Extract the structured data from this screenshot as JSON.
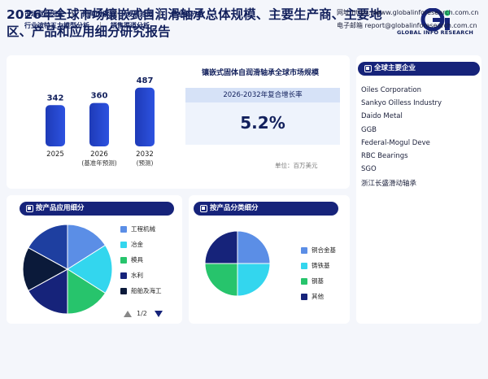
{
  "header": {
    "title": "2026年全球市场镶嵌式自润滑轴承总体规模、主要生产商、主要地区、产品和应用细分研究报告",
    "logo_text": "GLOBAL INFO RESEARCH"
  },
  "market": {
    "title": "镶嵌式固体自润滑轴承全球市场规模",
    "cagr_label": "2026-2032年复合增长率",
    "cagr_value": "5.2%",
    "unit": "单位：百万美元"
  },
  "chart_data": [
    {
      "type": "bar",
      "categories": [
        "2025",
        "2026",
        "2032"
      ],
      "category_notes": [
        "",
        "(基准年预测)",
        "(预测)"
      ],
      "values": [
        342,
        360,
        487
      ],
      "value_labels": [
        "342",
        "360",
        "487"
      ],
      "ylim": [
        0,
        500
      ]
    },
    {
      "type": "pie",
      "title": "按产品应用细分",
      "labels": [
        "工程机械",
        "冶金",
        "模具",
        "水利",
        "船舶及海工",
        ""
      ],
      "values": [
        16,
        18,
        16,
        17,
        16,
        17
      ],
      "colors": [
        "#5b8ee6",
        "#33d6ee",
        "#27c46c",
        "#16237a",
        "#0b1a3a",
        "#1e3fa0"
      ]
    },
    {
      "type": "pie",
      "title": "按产品分类细分",
      "labels": [
        "铜合金基",
        "铸铁基",
        "钢基",
        "其他"
      ],
      "values": [
        25,
        25,
        25,
        25
      ],
      "colors": [
        "#5b8ee6",
        "#33d6ee",
        "#27c46c",
        "#16237a"
      ]
    }
  ],
  "panels": {
    "companies_title": "全球主要企业",
    "app_title": "按产品应用细分",
    "prod_title": "按产品分类细分",
    "pager": "1/2"
  },
  "companies": [
    "Oiles Corporation",
    "Sankyo Oilless Industry",
    "Daido Metal",
    "GGB",
    "Federal-Mogul Deve",
    "RBC Bearings",
    "SGO",
    "浙江长盛滑动轴承"
  ],
  "footer": {
    "links_row1": [
      "市场驱动因素",
      "阻障因素",
      "发展趋势",
      "产业链分析"
    ],
    "links_row2": [
      "行业波特五力模型分析",
      "销售渠道分析"
    ],
    "website": "网址 https://www.globalinforesearch.com.cn",
    "email": "电子邮箱 report@globalinforesearch.com.cn"
  }
}
